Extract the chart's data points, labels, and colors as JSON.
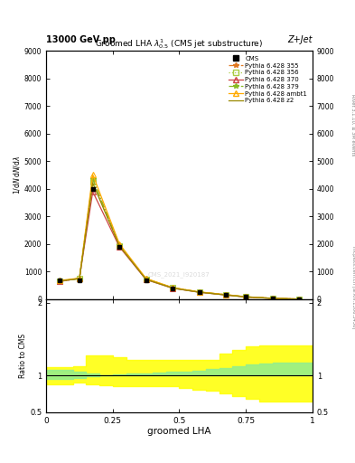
{
  "title": "Groomed LHA $\\lambda^{1}_{0.5}$ (CMS jet substructure)",
  "top_left_label": "13000 GeV pp",
  "top_right_label": "Z+Jet",
  "right_label_top": "Rivet 3.1.10, ≥ 3M events",
  "right_label_bottom": "mcplots.cern.ch [arXiv:1306.3436]",
  "watermark": "CMS_2021_I920187",
  "xlabel": "groomed LHA",
  "ylabel_main": "$\\frac{1}{\\mathrm{d}N}\\frac{\\mathrm{d}N}{\\mathrm{d}\\lambda}$",
  "ylabel_ratio": "Ratio to CMS",
  "xlim": [
    0,
    1
  ],
  "ylim_main": [
    0,
    9000
  ],
  "ylim_ratio": [
    0.5,
    2.05
  ],
  "cms_x": [
    0.05,
    0.125,
    0.175,
    0.275,
    0.375,
    0.475,
    0.575,
    0.675,
    0.75,
    0.85,
    0.95
  ],
  "cms_data": [
    700,
    700,
    4000,
    1900,
    700,
    400,
    250,
    150,
    80,
    30,
    5
  ],
  "series": [
    {
      "label": "Pythia 6.428 355",
      "color": "#e07820",
      "linestyle": "-.",
      "marker": "*",
      "marker_facecolor": "#e07820",
      "values": [
        650,
        750,
        4350,
        1960,
        740,
        415,
        262,
        162,
        86,
        33,
        6
      ]
    },
    {
      "label": "Pythia 6.428 356",
      "color": "#aacc44",
      "linestyle": ":",
      "marker": "s",
      "marker_facecolor": "none",
      "values": [
        660,
        740,
        4250,
        1930,
        725,
        408,
        256,
        156,
        83,
        31,
        5.5
      ]
    },
    {
      "label": "Pythia 6.428 370",
      "color": "#cc4444",
      "linestyle": "-",
      "marker": "^",
      "marker_facecolor": "none",
      "values": [
        640,
        760,
        3900,
        1900,
        710,
        400,
        252,
        152,
        80,
        30,
        5
      ]
    },
    {
      "label": "Pythia 6.428 379",
      "color": "#88bb22",
      "linestyle": "-.",
      "marker": "*",
      "marker_facecolor": "#88bb22",
      "values": [
        670,
        748,
        4360,
        1965,
        742,
        416,
        263,
        163,
        87,
        33,
        6.2
      ]
    },
    {
      "label": "Pythia 6.428 ambt1",
      "color": "#ffaa00",
      "linestyle": "-",
      "marker": "^",
      "marker_facecolor": "none",
      "values": [
        680,
        762,
        4520,
        2010,
        755,
        422,
        266,
        166,
        89,
        35,
        6.5
      ]
    },
    {
      "label": "Pythia 6.428 z2",
      "color": "#998800",
      "linestyle": "-",
      "marker": null,
      "marker_facecolor": null,
      "values": [
        655,
        748,
        4210,
        1935,
        718,
        403,
        254,
        154,
        82,
        31,
        5.2
      ]
    }
  ],
  "yticks_main": [
    0,
    1000,
    2000,
    3000,
    4000,
    5000,
    6000,
    7000,
    8000,
    9000
  ],
  "ytick_labels_main": [
    "0",
    "1000",
    "2000",
    "3000",
    "4000",
    "5000",
    "6000",
    "7000",
    "8000",
    "9000"
  ],
  "xticks": [
    0,
    0.25,
    0.5,
    0.75,
    1.0
  ],
  "xtick_labels": [
    "0",
    "0.25",
    "0.5",
    "0.75",
    "1"
  ],
  "yticks_ratio": [
    0.5,
    1.0,
    2.0
  ],
  "ytick_labels_ratio": [
    "0.5",
    "1",
    "2"
  ],
  "ratio_x": [
    0.0,
    0.05,
    0.1,
    0.15,
    0.2,
    0.25,
    0.3,
    0.35,
    0.4,
    0.45,
    0.5,
    0.55,
    0.6,
    0.65,
    0.7,
    0.75,
    0.8,
    0.85,
    0.9,
    0.95,
    1.0
  ],
  "ratio_green_lo": [
    0.95,
    0.95,
    0.97,
    0.99,
    1.0,
    1.0,
    1.0,
    1.0,
    1.0,
    1.0,
    1.0,
    1.0,
    1.0,
    1.0,
    1.01,
    1.01,
    1.01,
    1.01,
    1.01,
    1.01,
    1.01
  ],
  "ratio_green_hi": [
    1.08,
    1.08,
    1.05,
    1.03,
    1.01,
    1.02,
    1.03,
    1.03,
    1.04,
    1.05,
    1.06,
    1.07,
    1.09,
    1.1,
    1.13,
    1.16,
    1.17,
    1.18,
    1.18,
    1.18,
    1.18
  ],
  "ratio_yellow_lo": [
    0.88,
    0.88,
    0.9,
    0.88,
    0.87,
    0.86,
    0.86,
    0.86,
    0.86,
    0.85,
    0.83,
    0.81,
    0.79,
    0.76,
    0.72,
    0.68,
    0.65,
    0.65,
    0.65,
    0.65,
    0.65
  ],
  "ratio_yellow_hi": [
    1.12,
    1.12,
    1.13,
    1.28,
    1.28,
    1.25,
    1.22,
    1.22,
    1.22,
    1.22,
    1.22,
    1.22,
    1.22,
    1.3,
    1.35,
    1.4,
    1.42,
    1.42,
    1.42,
    1.42,
    1.42
  ],
  "background_color": "#ffffff"
}
